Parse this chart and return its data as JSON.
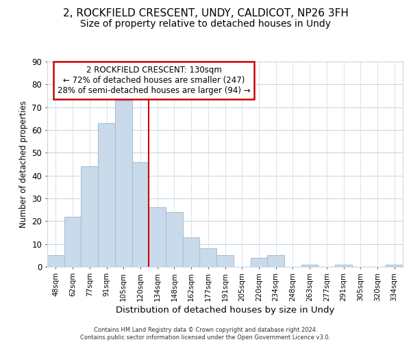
{
  "title1": "2, ROCKFIELD CRESCENT, UNDY, CALDICOT, NP26 3FH",
  "title2": "Size of property relative to detached houses in Undy",
  "xlabel": "Distribution of detached houses by size in Undy",
  "ylabel": "Number of detached properties",
  "bar_labels": [
    "48sqm",
    "62sqm",
    "77sqm",
    "91sqm",
    "105sqm",
    "120sqm",
    "134sqm",
    "148sqm",
    "162sqm",
    "177sqm",
    "191sqm",
    "205sqm",
    "220sqm",
    "234sqm",
    "248sqm",
    "263sqm",
    "277sqm",
    "291sqm",
    "305sqm",
    "320sqm",
    "334sqm"
  ],
  "bar_heights": [
    5,
    22,
    44,
    63,
    73,
    46,
    26,
    24,
    13,
    8,
    5,
    0,
    4,
    5,
    0,
    1,
    0,
    1,
    0,
    0,
    1
  ],
  "bar_color": "#c9daea",
  "bar_edge_color": "#a8c0d6",
  "red_line_x": 5.5,
  "annotation_lines": [
    "2 ROCKFIELD CRESCENT: 130sqm",
    "← 72% of detached houses are smaller (247)",
    "28% of semi-detached houses are larger (94) →"
  ],
  "annotation_box_color": "white",
  "annotation_box_edge": "#cc0000",
  "footer": "Contains HM Land Registry data © Crown copyright and database right 2024.\nContains public sector information licensed under the Open Government Licence v3.0.",
  "ylim": [
    0,
    90
  ],
  "yticks": [
    0,
    10,
    20,
    30,
    40,
    50,
    60,
    70,
    80,
    90
  ],
  "background_color": "#ffffff",
  "plot_background": "#ffffff",
  "title1_fontsize": 11,
  "title2_fontsize": 10,
  "grid_color": "#c8d8e8"
}
